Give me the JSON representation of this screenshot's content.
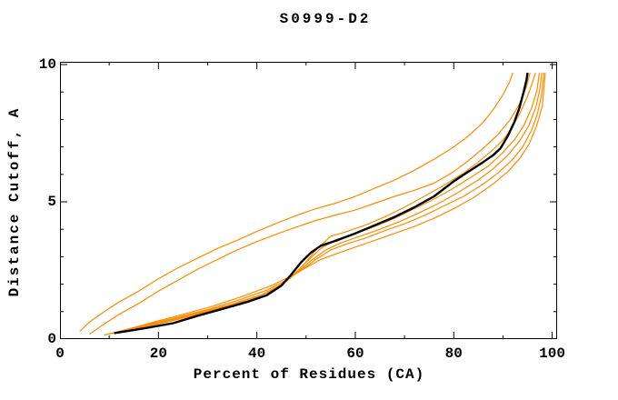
{
  "title": "S0999-D2",
  "chart_data": {
    "type": "line",
    "title": "S0999-D2",
    "xlabel": "Percent of Residues (CA)",
    "ylabel": "Distance Cutoff, A",
    "xlim": [
      0,
      101
    ],
    "ylim": [
      0,
      10.1
    ],
    "x_major_ticks": [
      0,
      20,
      40,
      60,
      80,
      100
    ],
    "x_minor_ticks": [
      10,
      30,
      50,
      70,
      90
    ],
    "y_major_ticks": [
      0,
      5,
      10
    ],
    "y_minor_ticks": [
      1,
      2,
      3,
      4,
      6,
      7,
      8,
      9
    ],
    "grid": "off",
    "legend": "none",
    "colors": {
      "model": "#ff8c00",
      "highlight": "#000000",
      "frame": "#000000"
    },
    "series": [
      {
        "name": "model-curve-1-outlier",
        "color": "#ff8c00",
        "width": 1.2,
        "points": [
          [
            4,
            0.28
          ],
          [
            6,
            0.62
          ],
          [
            9,
            1.0
          ],
          [
            12,
            1.35
          ],
          [
            16,
            1.75
          ],
          [
            20,
            2.2
          ],
          [
            24,
            2.6
          ],
          [
            28,
            2.95
          ],
          [
            32,
            3.3
          ],
          [
            36,
            3.6
          ],
          [
            40,
            3.92
          ],
          [
            44,
            4.22
          ],
          [
            48,
            4.5
          ],
          [
            52,
            4.75
          ],
          [
            56,
            4.95
          ],
          [
            60,
            5.2
          ],
          [
            64,
            5.5
          ],
          [
            68,
            5.8
          ],
          [
            72,
            6.15
          ],
          [
            76,
            6.55
          ],
          [
            80,
            7.0
          ],
          [
            83,
            7.4
          ],
          [
            86,
            7.9
          ],
          [
            88,
            8.35
          ],
          [
            90,
            8.9
          ],
          [
            91.3,
            9.35
          ],
          [
            92,
            9.7
          ]
        ]
      },
      {
        "name": "model-curve-2",
        "color": "#ff8c00",
        "width": 1.2,
        "points": [
          [
            6,
            0.18
          ],
          [
            9,
            0.55
          ],
          [
            12,
            0.9
          ],
          [
            16,
            1.3
          ],
          [
            20,
            1.75
          ],
          [
            24,
            2.15
          ],
          [
            28,
            2.55
          ],
          [
            32,
            2.9
          ],
          [
            36,
            3.25
          ],
          [
            40,
            3.55
          ],
          [
            44,
            3.82
          ],
          [
            48,
            4.08
          ],
          [
            52,
            4.32
          ],
          [
            56,
            4.52
          ],
          [
            60,
            4.7
          ],
          [
            64,
            4.95
          ],
          [
            68,
            5.2
          ],
          [
            72,
            5.42
          ],
          [
            76,
            5.68
          ],
          [
            80,
            6.1
          ],
          [
            83,
            6.5
          ],
          [
            86,
            6.95
          ],
          [
            89,
            7.45
          ],
          [
            91.5,
            8.0
          ],
          [
            93.3,
            8.55
          ],
          [
            94.8,
            9.2
          ],
          [
            95.5,
            9.7
          ]
        ]
      },
      {
        "name": "model-curve-3",
        "color": "#ff8c00",
        "width": 1.2,
        "points": [
          [
            9,
            0.15
          ],
          [
            14,
            0.35
          ],
          [
            20,
            0.55
          ],
          [
            26,
            0.8
          ],
          [
            32,
            1.1
          ],
          [
            38,
            1.4
          ],
          [
            43,
            1.75
          ],
          [
            46,
            2.1
          ],
          [
            49,
            2.6
          ],
          [
            52,
            3.25
          ],
          [
            55,
            3.75
          ],
          [
            58,
            3.9
          ],
          [
            62,
            4.15
          ],
          [
            66,
            4.45
          ],
          [
            70,
            4.8
          ],
          [
            74,
            5.2
          ],
          [
            78,
            5.6
          ],
          [
            82,
            6.05
          ],
          [
            85,
            6.45
          ],
          [
            88,
            6.9
          ],
          [
            90,
            7.25
          ],
          [
            92,
            7.75
          ],
          [
            93.5,
            8.25
          ],
          [
            95,
            8.85
          ],
          [
            96,
            9.35
          ],
          [
            96.6,
            9.7
          ]
        ]
      },
      {
        "name": "model-curve-4",
        "color": "#ff8c00",
        "width": 1.2,
        "points": [
          [
            10,
            0.18
          ],
          [
            15,
            0.4
          ],
          [
            21,
            0.62
          ],
          [
            27,
            0.88
          ],
          [
            33,
            1.15
          ],
          [
            39,
            1.45
          ],
          [
            44,
            1.85
          ],
          [
            47,
            2.25
          ],
          [
            50,
            2.8
          ],
          [
            53,
            3.3
          ],
          [
            56,
            3.62
          ],
          [
            60,
            3.85
          ],
          [
            64,
            4.1
          ],
          [
            68,
            4.4
          ],
          [
            72,
            4.75
          ],
          [
            76,
            5.1
          ],
          [
            80,
            5.5
          ],
          [
            84,
            5.95
          ],
          [
            87,
            6.3
          ],
          [
            90,
            6.8
          ],
          [
            92.5,
            7.3
          ],
          [
            94.3,
            7.8
          ],
          [
            95.8,
            8.4
          ],
          [
            96.9,
            9.05
          ],
          [
            97.4,
            9.7
          ]
        ]
      },
      {
        "name": "model-curve-5",
        "color": "#ff8c00",
        "width": 1.2,
        "points": [
          [
            11,
            0.22
          ],
          [
            17,
            0.48
          ],
          [
            23,
            0.72
          ],
          [
            29,
            1.0
          ],
          [
            35,
            1.28
          ],
          [
            41,
            1.62
          ],
          [
            45,
            2.0
          ],
          [
            48,
            2.4
          ],
          [
            51,
            2.85
          ],
          [
            54,
            3.25
          ],
          [
            57,
            3.5
          ],
          [
            61,
            3.75
          ],
          [
            65,
            4.0
          ],
          [
            69,
            4.28
          ],
          [
            73,
            4.6
          ],
          [
            77,
            4.95
          ],
          [
            81,
            5.35
          ],
          [
            85,
            5.8
          ],
          [
            88,
            6.2
          ],
          [
            91,
            6.7
          ],
          [
            93.5,
            7.25
          ],
          [
            95.3,
            7.8
          ],
          [
            96.7,
            8.45
          ],
          [
            97.5,
            9.1
          ],
          [
            97.9,
            9.7
          ]
        ]
      },
      {
        "name": "model-curve-6",
        "color": "#ff8c00",
        "width": 1.2,
        "points": [
          [
            12,
            0.28
          ],
          [
            18,
            0.55
          ],
          [
            24,
            0.8
          ],
          [
            30,
            1.08
          ],
          [
            36,
            1.4
          ],
          [
            42,
            1.78
          ],
          [
            46,
            2.15
          ],
          [
            49,
            2.5
          ],
          [
            52,
            2.9
          ],
          [
            55,
            3.25
          ],
          [
            58,
            3.45
          ],
          [
            62,
            3.68
          ],
          [
            66,
            3.95
          ],
          [
            70,
            4.2
          ],
          [
            74,
            4.5
          ],
          [
            78,
            4.85
          ],
          [
            82,
            5.2
          ],
          [
            86,
            5.65
          ],
          [
            89,
            6.05
          ],
          [
            92,
            6.55
          ],
          [
            94,
            7.0
          ],
          [
            95.8,
            7.6
          ],
          [
            97,
            8.2
          ],
          [
            97.9,
            8.95
          ],
          [
            98.3,
            9.7
          ]
        ]
      },
      {
        "name": "model-curve-7",
        "color": "#ff8c00",
        "width": 1.2,
        "points": [
          [
            13,
            0.32
          ],
          [
            19,
            0.62
          ],
          [
            25,
            0.9
          ],
          [
            31,
            1.2
          ],
          [
            37,
            1.55
          ],
          [
            43,
            1.95
          ],
          [
            47,
            2.3
          ],
          [
            50,
            2.6
          ],
          [
            53,
            2.9
          ],
          [
            56,
            3.1
          ],
          [
            60,
            3.35
          ],
          [
            64,
            3.6
          ],
          [
            68,
            3.85
          ],
          [
            72,
            4.1
          ],
          [
            76,
            4.4
          ],
          [
            80,
            4.75
          ],
          [
            84,
            5.15
          ],
          [
            88,
            5.65
          ],
          [
            91,
            6.1
          ],
          [
            93.5,
            6.6
          ],
          [
            95.3,
            7.1
          ],
          [
            96.8,
            7.75
          ],
          [
            98,
            8.5
          ],
          [
            98.6,
            9.7
          ]
        ]
      },
      {
        "name": "highlight-curve-black",
        "color": "#000000",
        "width": 2.4,
        "points": [
          [
            11,
            0.22
          ],
          [
            14,
            0.3
          ],
          [
            18,
            0.42
          ],
          [
            23,
            0.58
          ],
          [
            28,
            0.85
          ],
          [
            33,
            1.1
          ],
          [
            38,
            1.35
          ],
          [
            42,
            1.6
          ],
          [
            45,
            1.95
          ],
          [
            47,
            2.35
          ],
          [
            49,
            2.8
          ],
          [
            51,
            3.15
          ],
          [
            53,
            3.4
          ],
          [
            56,
            3.58
          ],
          [
            60,
            3.85
          ],
          [
            64,
            4.15
          ],
          [
            68,
            4.45
          ],
          [
            72,
            4.8
          ],
          [
            76,
            5.2
          ],
          [
            80,
            5.75
          ],
          [
            83,
            6.1
          ],
          [
            86,
            6.45
          ],
          [
            88,
            6.7
          ],
          [
            89.5,
            6.95
          ],
          [
            91,
            7.4
          ],
          [
            92.3,
            7.9
          ],
          [
            93.3,
            8.4
          ],
          [
            94.2,
            9.0
          ],
          [
            94.8,
            9.45
          ],
          [
            95,
            9.7
          ]
        ]
      }
    ]
  }
}
